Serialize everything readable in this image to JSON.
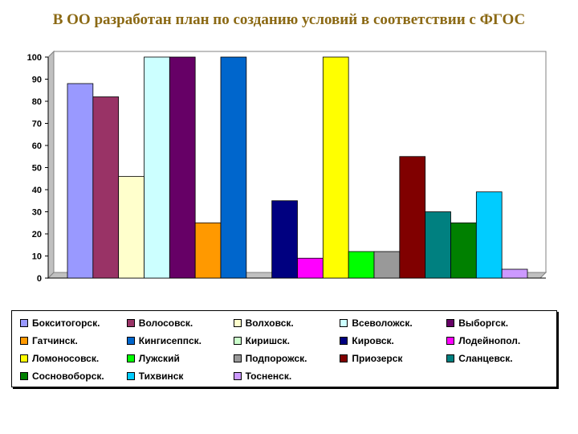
{
  "title": "В ОО  разработан план по созданию условий в соответствии с ФГОС",
  "chart_data": {
    "type": "bar",
    "title": "",
    "xlabel": "",
    "ylabel": "",
    "ylim": [
      0,
      100
    ],
    "yticks": [
      0,
      10,
      20,
      30,
      40,
      50,
      60,
      70,
      80,
      90,
      100
    ],
    "grid": false,
    "legend_position": "bottom",
    "series": [
      {
        "name": "Бокситогорск.",
        "value": 88,
        "color": "#9999FF"
      },
      {
        "name": "Волосовск.",
        "value": 82,
        "color": "#993366"
      },
      {
        "name": "Волховск.",
        "value": 46,
        "color": "#FFFFCC"
      },
      {
        "name": "Всеволожск.",
        "value": 100,
        "color": "#CCFFFF"
      },
      {
        "name": "Выборгск.",
        "value": 100,
        "color": "#660066"
      },
      {
        "name": "Гатчинск.",
        "value": 25,
        "color": "#FF9900"
      },
      {
        "name": "Кингисеппск.",
        "value": 100,
        "color": "#0066CC"
      },
      {
        "name": "Киришск.",
        "value": 0,
        "color": "#CCFFCC"
      },
      {
        "name": "Кировск.",
        "value": 35,
        "color": "#000080"
      },
      {
        "name": "Лодейнопол.",
        "value": 9,
        "color": "#FF00FF"
      },
      {
        "name": "Ломоносовск.",
        "value": 100,
        "color": "#FFFF00"
      },
      {
        "name": "Лужский",
        "value": 12,
        "color": "#00FF00"
      },
      {
        "name": "Подпорожск.",
        "value": 12,
        "color": "#999999"
      },
      {
        "name": "Приозерск",
        "value": 55,
        "color": "#800000"
      },
      {
        "name": "Сланцевск.",
        "value": 30,
        "color": "#008080"
      },
      {
        "name": "Сосновоборск.",
        "value": 25,
        "color": "#008000"
      },
      {
        "name": "Тихвинск",
        "value": 39,
        "color": "#00CCFF"
      },
      {
        "name": "Тосненск.",
        "value": 4,
        "color": "#CC99FF"
      }
    ]
  }
}
